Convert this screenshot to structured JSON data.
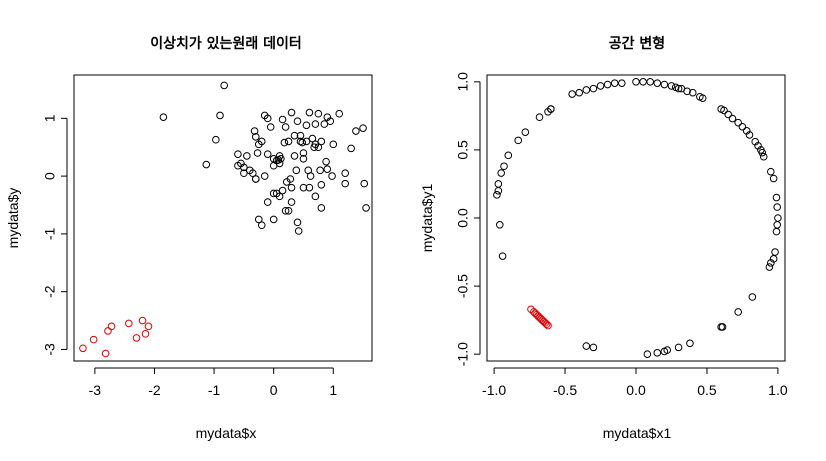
{
  "colors": {
    "normal": "#000000",
    "outlier": "#dd0000"
  },
  "chart_data": [
    {
      "type": "scatter",
      "title": "이상치가 있는원래 데이터",
      "xlabel": "mydata$x",
      "ylabel": "mydata$y",
      "xlim": [
        -3.35,
        1.65
      ],
      "ylim": [
        -3.2,
        1.75
      ],
      "xticks": [
        -3,
        -2,
        -1,
        0,
        1
      ],
      "yticks": [
        -3,
        -2,
        -1,
        0,
        1
      ],
      "series": [
        {
          "color": "normal",
          "x": [
            -0.83,
            -1.85,
            -0.9,
            -1.13,
            -0.97,
            -0.6,
            -0.55,
            -0.5,
            -0.4,
            -0.32,
            -0.27,
            -0.3,
            -0.25,
            -0.15,
            -0.1,
            -0.05,
            0.0,
            0.05,
            0.1,
            0.12,
            0.15,
            0.2,
            0.25,
            0.3,
            0.35,
            0.4,
            0.45,
            0.5,
            0.55,
            0.6,
            0.65,
            0.7,
            0.75,
            0.8,
            0.85,
            0.9,
            0.95,
            1.0,
            1.1,
            1.2,
            1.3,
            1.38,
            1.5,
            1.52,
            1.55,
            -0.6,
            -0.45,
            -0.35,
            -0.2,
            -0.1,
            0.0,
            0.08,
            0.18,
            0.28,
            0.38,
            0.48,
            0.58,
            0.68,
            0.78,
            0.88,
            0.98,
            -0.5,
            -0.3,
            -0.2,
            0.0,
            0.1,
            0.3,
            0.5,
            0.7,
            0.8,
            -0.25,
            0.0,
            0.2,
            0.4,
            0.6,
            0.8,
            0.9,
            1.2,
            -0.3,
            -0.1,
            0.15,
            0.35,
            0.55,
            0.75,
            0.05,
            0.22,
            0.42,
            0.62,
            0.3,
            0.5,
            0.7,
            -0.15,
            0.45,
            0.1,
            0.25
          ],
          "y": [
            1.57,
            1.02,
            1.05,
            0.2,
            0.63,
            0.38,
            0.22,
            0.15,
            0.1,
            0.78,
            0.4,
            0.68,
            0.55,
            1.05,
            1.0,
            0.85,
            0.3,
            0.27,
            0.22,
            0.3,
            0.98,
            0.85,
            0.6,
            1.1,
            0.7,
            0.95,
            0.6,
            0.4,
            0.88,
            1.1,
            0.65,
            0.55,
            1.08,
            0.6,
            0.9,
            1.02,
            0.95,
            0.55,
            1.08,
            -0.13,
            0.48,
            0.78,
            0.83,
            -0.13,
            -0.55,
            0.18,
            0.35,
            0.05,
            0.6,
            0.38,
            0.18,
            0.28,
            0.58,
            -0.05,
            0.1,
            0.58,
            0.1,
            0.5,
            0.1,
            0.25,
            0.0,
            0.05,
            -0.05,
            -0.85,
            -0.75,
            -0.35,
            -0.45,
            -0.2,
            -0.35,
            -0.15,
            -0.75,
            -0.3,
            -0.6,
            -0.8,
            -0.2,
            -0.55,
            0.12,
            0.05,
            -0.05,
            -0.45,
            -0.25,
            0.35,
            0.6,
            0.5,
            -0.3,
            -0.1,
            -0.95,
            0.0,
            -0.2,
            0.3,
            0.9,
            0.0,
            0.7,
            0.35,
            -0.6
          ]
        },
        {
          "color": "outlier",
          "x": [
            -3.2,
            -3.02,
            -2.82,
            -2.78,
            -2.72,
            -2.43,
            -2.3,
            -2.2,
            -2.15,
            -2.1
          ],
          "y": [
            -2.98,
            -2.83,
            -3.07,
            -2.68,
            -2.6,
            -2.55,
            -2.8,
            -2.5,
            -2.73,
            -2.6
          ]
        }
      ]
    },
    {
      "type": "scatter",
      "title": "공간 변형",
      "xlabel": "mydata$x1",
      "ylabel": "mydata$y1",
      "xlim": [
        -1.05,
        1.05
      ],
      "ylim": [
        -1.05,
        1.05
      ],
      "xticks": [
        -1.0,
        -0.5,
        0.0,
        0.5,
        1.0
      ],
      "yticks": [
        -1.0,
        -0.5,
        0.0,
        0.5,
        1.0
      ],
      "series": [
        {
          "color": "normal",
          "x": [
            0.0,
            0.05,
            0.1,
            0.15,
            0.2,
            0.25,
            0.28,
            0.3,
            0.32,
            0.36,
            0.4,
            0.45,
            0.47,
            -0.1,
            -0.15,
            -0.2,
            -0.25,
            -0.3,
            -0.35,
            -0.4,
            -0.45,
            -0.6,
            -0.62,
            -0.68,
            -0.78,
            -0.83,
            -0.9,
            -0.93,
            -0.95,
            -0.97,
            -0.97,
            -0.98,
            -0.94,
            -0.96,
            -0.6,
            0.6,
            0.62,
            0.65,
            0.68,
            0.72,
            0.75,
            0.78,
            0.8,
            0.84,
            0.86,
            0.88,
            0.89,
            0.9,
            0.95,
            0.97,
            0.99,
            0.995,
            1.0,
            0.995,
            0.99,
            0.98,
            0.97,
            0.95,
            0.94,
            0.82,
            0.72,
            0.6,
            0.61,
            0.38,
            0.3,
            0.22,
            0.2,
            0.15,
            0.08,
            -0.3,
            -0.35
          ],
          "y": [
            1.0,
            1.0,
            1.0,
            0.99,
            0.98,
            0.97,
            0.96,
            0.95,
            0.95,
            0.93,
            0.92,
            0.89,
            0.88,
            0.99,
            0.99,
            0.98,
            0.97,
            0.95,
            0.94,
            0.92,
            0.91,
            0.8,
            0.78,
            0.74,
            0.63,
            0.57,
            0.46,
            0.38,
            0.33,
            0.25,
            0.2,
            0.17,
            -0.28,
            -0.05,
            0.8,
            0.8,
            0.79,
            0.76,
            0.73,
            0.7,
            0.67,
            0.64,
            0.61,
            0.56,
            0.53,
            0.5,
            0.48,
            0.45,
            0.34,
            0.29,
            0.15,
            0.08,
            0.0,
            -0.05,
            -0.1,
            -0.25,
            -0.3,
            -0.33,
            -0.36,
            -0.58,
            -0.69,
            -0.8,
            -0.8,
            -0.92,
            -0.95,
            -0.97,
            -0.98,
            -0.99,
            -1.0,
            -0.95,
            -0.94
          ]
        },
        {
          "color": "outlier",
          "x": [
            -0.74,
            -0.72,
            -0.71,
            -0.7,
            -0.69,
            -0.68,
            -0.67,
            -0.66,
            -0.65,
            -0.64,
            -0.63,
            -0.62
          ],
          "y": [
            -0.67,
            -0.69,
            -0.7,
            -0.71,
            -0.72,
            -0.73,
            -0.74,
            -0.75,
            -0.76,
            -0.77,
            -0.78,
            -0.79
          ]
        }
      ]
    }
  ]
}
